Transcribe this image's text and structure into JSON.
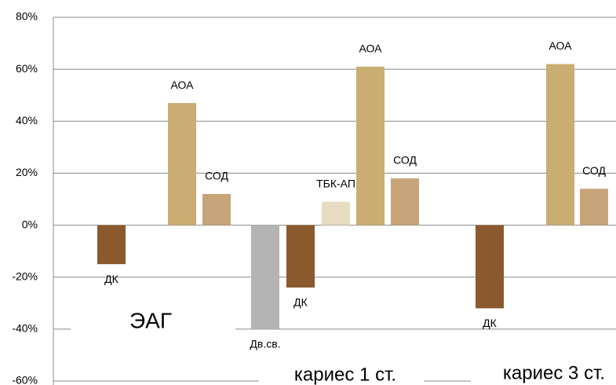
{
  "chart_data": {
    "type": "bar",
    "ylim": [
      -60,
      80
    ],
    "yticks": [
      {
        "value": -60,
        "label": "-60%"
      },
      {
        "value": -40,
        "label": "-40%"
      },
      {
        "value": -20,
        "label": "-20%"
      },
      {
        "value": 0,
        "label": "0%"
      },
      {
        "value": 20,
        "label": "20%"
      },
      {
        "value": 40,
        "label": "40%"
      },
      {
        "value": 60,
        "label": "60%"
      },
      {
        "value": 80,
        "label": "80%"
      }
    ],
    "grid": true,
    "groups": [
      {
        "name": "ЭАГ",
        "bars": [
          {
            "label": "ДК",
            "value": -15,
            "color": "#8a5a2e"
          },
          {
            "label": "АОА",
            "value": 47,
            "color": "#c9ad72"
          },
          {
            "label": "СОД",
            "value": 12,
            "color": "#c7a47a"
          }
        ]
      },
      {
        "name": "кариес 1 ст.",
        "bars": [
          {
            "label": "Дв.св.",
            "value": -40,
            "color": "#b4b4b4"
          },
          {
            "label": "ДК",
            "value": -24,
            "color": "#8a5a2e"
          },
          {
            "label": "ТБК-АП",
            "value": 9,
            "color": "#e6dcc2"
          },
          {
            "label": "АОА",
            "value": 61,
            "color": "#c9ad72"
          },
          {
            "label": "СОД",
            "value": 18,
            "color": "#c7a47a"
          }
        ]
      },
      {
        "name": "кариес 3 ст.",
        "bars": [
          {
            "label": "ДК",
            "value": -32,
            "color": "#8a5a2e"
          },
          {
            "label": "АОА",
            "value": 62,
            "color": "#c9ad72"
          },
          {
            "label": "СОД",
            "value": 14,
            "color": "#c7a47a"
          }
        ]
      }
    ]
  }
}
